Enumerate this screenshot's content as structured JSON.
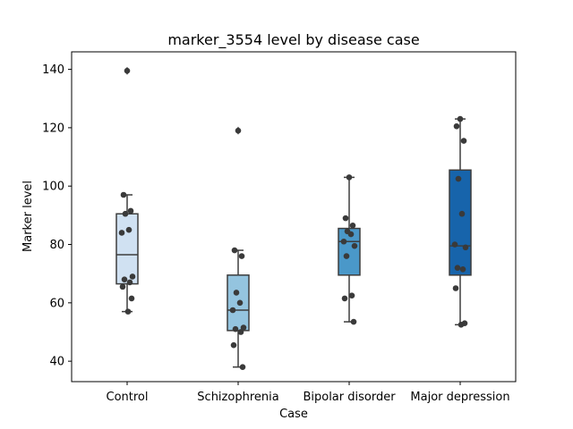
{
  "chart_data": {
    "type": "box",
    "title": "marker_3554 level by disease case",
    "xlabel": "Case",
    "ylabel": "Marker level",
    "ylim": [
      33,
      146
    ],
    "yticks": [
      40,
      60,
      80,
      100,
      120,
      140
    ],
    "grid": false,
    "categories": [
      "Control",
      "Schizophrenia",
      "Bipolar disorder",
      "Major depression"
    ],
    "colors": [
      "#d0e1f2",
      "#94c4df",
      "#4a98c9",
      "#1764ab"
    ],
    "boxes": [
      {
        "category": "Control",
        "q1": 66.5,
        "median": 76.5,
        "q3": 90.5,
        "whisker_low": 57,
        "whisker_high": 97,
        "outliers": [
          139.5
        ]
      },
      {
        "category": "Schizophrenia",
        "q1": 50.5,
        "median": 57.5,
        "q3": 69.5,
        "whisker_low": 38,
        "whisker_high": 78,
        "outliers": [
          119
        ]
      },
      {
        "category": "Bipolar disorder",
        "q1": 69.5,
        "median": 81,
        "q3": 85.5,
        "whisker_low": 53.5,
        "whisker_high": 103,
        "outliers": []
      },
      {
        "category": "Major depression",
        "q1": 69.5,
        "median": 79.5,
        "q3": 105.5,
        "whisker_low": 52.5,
        "whisker_high": 123,
        "outliers": []
      }
    ],
    "points": [
      {
        "category": "Control",
        "values": [
          139.5,
          97,
          91.5,
          90.5,
          85,
          84,
          69,
          68,
          67,
          65.5,
          61.5,
          57
        ]
      },
      {
        "category": "Schizophrenia",
        "values": [
          119,
          78,
          76,
          63.5,
          60,
          57.5,
          51.5,
          51,
          50,
          45.5,
          38
        ]
      },
      {
        "category": "Bipolar disorder",
        "values": [
          103,
          89,
          86.5,
          84.5,
          83.5,
          81,
          79.5,
          76,
          62.5,
          61.5,
          53.5
        ]
      },
      {
        "category": "Major depression",
        "values": [
          123,
          120.5,
          115.5,
          102.5,
          90.5,
          80,
          79,
          72,
          71.5,
          65,
          53,
          52.5
        ]
      }
    ]
  }
}
